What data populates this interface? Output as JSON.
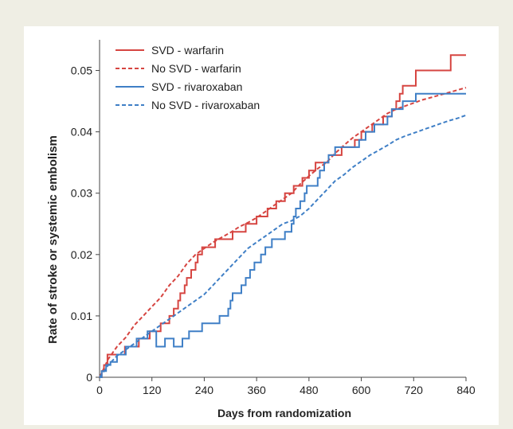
{
  "chart_data": {
    "type": "line",
    "xlabel": "Days from randomization",
    "ylabel": "Rate of stroke or systemic embolism",
    "xlim": [
      0,
      840
    ],
    "ylim": [
      0,
      0.055
    ],
    "xticks": [
      0,
      120,
      240,
      360,
      480,
      600,
      720,
      840
    ],
    "yticks": [
      0,
      0.01,
      0.02,
      0.03,
      0.04,
      0.05
    ],
    "xtick_labels": [
      "0",
      "120",
      "240",
      "360",
      "480",
      "600",
      "720",
      "840"
    ],
    "ytick_labels": [
      "0",
      "0.01",
      "0.02",
      "0.03",
      "0.04",
      "0.05"
    ],
    "grid": false,
    "legend_position": "top-left",
    "series": [
      {
        "name": "SVD - warfarin",
        "color": "#d64541",
        "dash": "solid",
        "step": true,
        "points": [
          [
            0,
            0
          ],
          [
            5,
            0.001
          ],
          [
            10,
            0.002
          ],
          [
            18,
            0.0037
          ],
          [
            50,
            0.0037
          ],
          [
            58,
            0.005
          ],
          [
            80,
            0.005
          ],
          [
            90,
            0.0063
          ],
          [
            110,
            0.0063
          ],
          [
            115,
            0.0075
          ],
          [
            140,
            0.0088
          ],
          [
            155,
            0.0088
          ],
          [
            160,
            0.01
          ],
          [
            170,
            0.0112
          ],
          [
            180,
            0.0125
          ],
          [
            185,
            0.0137
          ],
          [
            195,
            0.015
          ],
          [
            200,
            0.0162
          ],
          [
            210,
            0.0175
          ],
          [
            220,
            0.0187
          ],
          [
            225,
            0.02
          ],
          [
            235,
            0.0212
          ],
          [
            260,
            0.0212
          ],
          [
            265,
            0.0225
          ],
          [
            300,
            0.0225
          ],
          [
            305,
            0.0237
          ],
          [
            330,
            0.0237
          ],
          [
            335,
            0.025
          ],
          [
            355,
            0.025
          ],
          [
            360,
            0.0262
          ],
          [
            380,
            0.0262
          ],
          [
            385,
            0.0275
          ],
          [
            400,
            0.0275
          ],
          [
            405,
            0.0287
          ],
          [
            420,
            0.0287
          ],
          [
            425,
            0.03
          ],
          [
            440,
            0.03
          ],
          [
            445,
            0.0312
          ],
          [
            460,
            0.0312
          ],
          [
            465,
            0.0325
          ],
          [
            480,
            0.0337
          ],
          [
            490,
            0.0337
          ],
          [
            495,
            0.035
          ],
          [
            520,
            0.035
          ],
          [
            525,
            0.0362
          ],
          [
            550,
            0.0362
          ],
          [
            555,
            0.0375
          ],
          [
            580,
            0.0375
          ],
          [
            585,
            0.0387
          ],
          [
            600,
            0.04
          ],
          [
            620,
            0.04
          ],
          [
            625,
            0.0412
          ],
          [
            645,
            0.0412
          ],
          [
            650,
            0.0425
          ],
          [
            665,
            0.0425
          ],
          [
            670,
            0.0437
          ],
          [
            680,
            0.045
          ],
          [
            688,
            0.0462
          ],
          [
            695,
            0.0475
          ],
          [
            720,
            0.0475
          ],
          [
            725,
            0.05
          ],
          [
            800,
            0.05
          ],
          [
            805,
            0.0525
          ],
          [
            840,
            0.0525
          ]
        ]
      },
      {
        "name": "No SVD - warfarin",
        "color": "#d64541",
        "dash": "dashed",
        "step": false,
        "points": [
          [
            0,
            0
          ],
          [
            20,
            0.003
          ],
          [
            40,
            0.005
          ],
          [
            60,
            0.0065
          ],
          [
            80,
            0.0085
          ],
          [
            100,
            0.01
          ],
          [
            120,
            0.0115
          ],
          [
            140,
            0.013
          ],
          [
            160,
            0.015
          ],
          [
            180,
            0.0165
          ],
          [
            200,
            0.0185
          ],
          [
            220,
            0.02
          ],
          [
            240,
            0.021
          ],
          [
            260,
            0.022
          ],
          [
            280,
            0.0228
          ],
          [
            300,
            0.0236
          ],
          [
            320,
            0.0245
          ],
          [
            340,
            0.0252
          ],
          [
            360,
            0.026
          ],
          [
            380,
            0.027
          ],
          [
            400,
            0.028
          ],
          [
            420,
            0.029
          ],
          [
            440,
            0.03
          ],
          [
            460,
            0.0315
          ],
          [
            480,
            0.0328
          ],
          [
            500,
            0.034
          ],
          [
            520,
            0.035
          ],
          [
            540,
            0.0365
          ],
          [
            560,
            0.0378
          ],
          [
            580,
            0.039
          ],
          [
            600,
            0.04
          ],
          [
            620,
            0.041
          ],
          [
            640,
            0.042
          ],
          [
            660,
            0.043
          ],
          [
            680,
            0.0437
          ],
          [
            700,
            0.0442
          ],
          [
            720,
            0.0447
          ],
          [
            740,
            0.0452
          ],
          [
            760,
            0.0456
          ],
          [
            780,
            0.046
          ],
          [
            800,
            0.0464
          ],
          [
            820,
            0.0468
          ],
          [
            840,
            0.0472
          ]
        ]
      },
      {
        "name": "SVD - rivaroxaban",
        "color": "#3f7fc6",
        "dash": "solid",
        "step": true,
        "points": [
          [
            0,
            0
          ],
          [
            5,
            0.001
          ],
          [
            15,
            0.002
          ],
          [
            25,
            0.0025
          ],
          [
            40,
            0.0037
          ],
          [
            60,
            0.005
          ],
          [
            80,
            0.005
          ],
          [
            85,
            0.0063
          ],
          [
            105,
            0.0063
          ],
          [
            110,
            0.0075
          ],
          [
            125,
            0.0075
          ],
          [
            130,
            0.005
          ],
          [
            145,
            0.005
          ],
          [
            150,
            0.0063
          ],
          [
            165,
            0.0063
          ],
          [
            170,
            0.005
          ],
          [
            185,
            0.005
          ],
          [
            190,
            0.0063
          ],
          [
            200,
            0.0063
          ],
          [
            205,
            0.0075
          ],
          [
            230,
            0.0075
          ],
          [
            235,
            0.0088
          ],
          [
            270,
            0.0088
          ],
          [
            275,
            0.01
          ],
          [
            290,
            0.01
          ],
          [
            295,
            0.0112
          ],
          [
            300,
            0.0125
          ],
          [
            305,
            0.0137
          ],
          [
            320,
            0.0137
          ],
          [
            325,
            0.015
          ],
          [
            335,
            0.0162
          ],
          [
            345,
            0.0175
          ],
          [
            355,
            0.0187
          ],
          [
            365,
            0.0187
          ],
          [
            370,
            0.02
          ],
          [
            380,
            0.0212
          ],
          [
            395,
            0.0225
          ],
          [
            420,
            0.0225
          ],
          [
            425,
            0.0237
          ],
          [
            440,
            0.025
          ],
          [
            445,
            0.0262
          ],
          [
            450,
            0.0275
          ],
          [
            460,
            0.0287
          ],
          [
            470,
            0.03
          ],
          [
            475,
            0.0312
          ],
          [
            490,
            0.0312
          ],
          [
            500,
            0.0325
          ],
          [
            505,
            0.0337
          ],
          [
            515,
            0.035
          ],
          [
            525,
            0.0362
          ],
          [
            540,
            0.0375
          ],
          [
            590,
            0.0375
          ],
          [
            595,
            0.0387
          ],
          [
            605,
            0.0387
          ],
          [
            610,
            0.04
          ],
          [
            625,
            0.04
          ],
          [
            630,
            0.0412
          ],
          [
            655,
            0.0412
          ],
          [
            660,
            0.0425
          ],
          [
            670,
            0.0437
          ],
          [
            690,
            0.0437
          ],
          [
            695,
            0.045
          ],
          [
            720,
            0.045
          ],
          [
            725,
            0.0462
          ],
          [
            840,
            0.0462
          ]
        ]
      },
      {
        "name": "No SVD - rivaroxaban",
        "color": "#3f7fc6",
        "dash": "dashed",
        "step": false,
        "points": [
          [
            0,
            0
          ],
          [
            20,
            0.002
          ],
          [
            40,
            0.0035
          ],
          [
            60,
            0.0045
          ],
          [
            80,
            0.0055
          ],
          [
            100,
            0.0065
          ],
          [
            120,
            0.0075
          ],
          [
            140,
            0.0085
          ],
          [
            160,
            0.0095
          ],
          [
            180,
            0.0105
          ],
          [
            200,
            0.0115
          ],
          [
            220,
            0.0125
          ],
          [
            240,
            0.0135
          ],
          [
            260,
            0.015
          ],
          [
            280,
            0.0165
          ],
          [
            300,
            0.018
          ],
          [
            320,
            0.0195
          ],
          [
            340,
            0.021
          ],
          [
            360,
            0.022
          ],
          [
            380,
            0.023
          ],
          [
            400,
            0.024
          ],
          [
            420,
            0.025
          ],
          [
            440,
            0.0255
          ],
          [
            460,
            0.0263
          ],
          [
            480,
            0.0275
          ],
          [
            500,
            0.029
          ],
          [
            520,
            0.0305
          ],
          [
            540,
            0.032
          ],
          [
            560,
            0.033
          ],
          [
            580,
            0.0342
          ],
          [
            600,
            0.0352
          ],
          [
            620,
            0.0362
          ],
          [
            640,
            0.037
          ],
          [
            660,
            0.0378
          ],
          [
            680,
            0.0387
          ],
          [
            700,
            0.0393
          ],
          [
            720,
            0.0398
          ],
          [
            740,
            0.0403
          ],
          [
            760,
            0.0408
          ],
          [
            780,
            0.0413
          ],
          [
            800,
            0.0418
          ],
          [
            820,
            0.0422
          ],
          [
            840,
            0.0427
          ]
        ]
      }
    ]
  }
}
